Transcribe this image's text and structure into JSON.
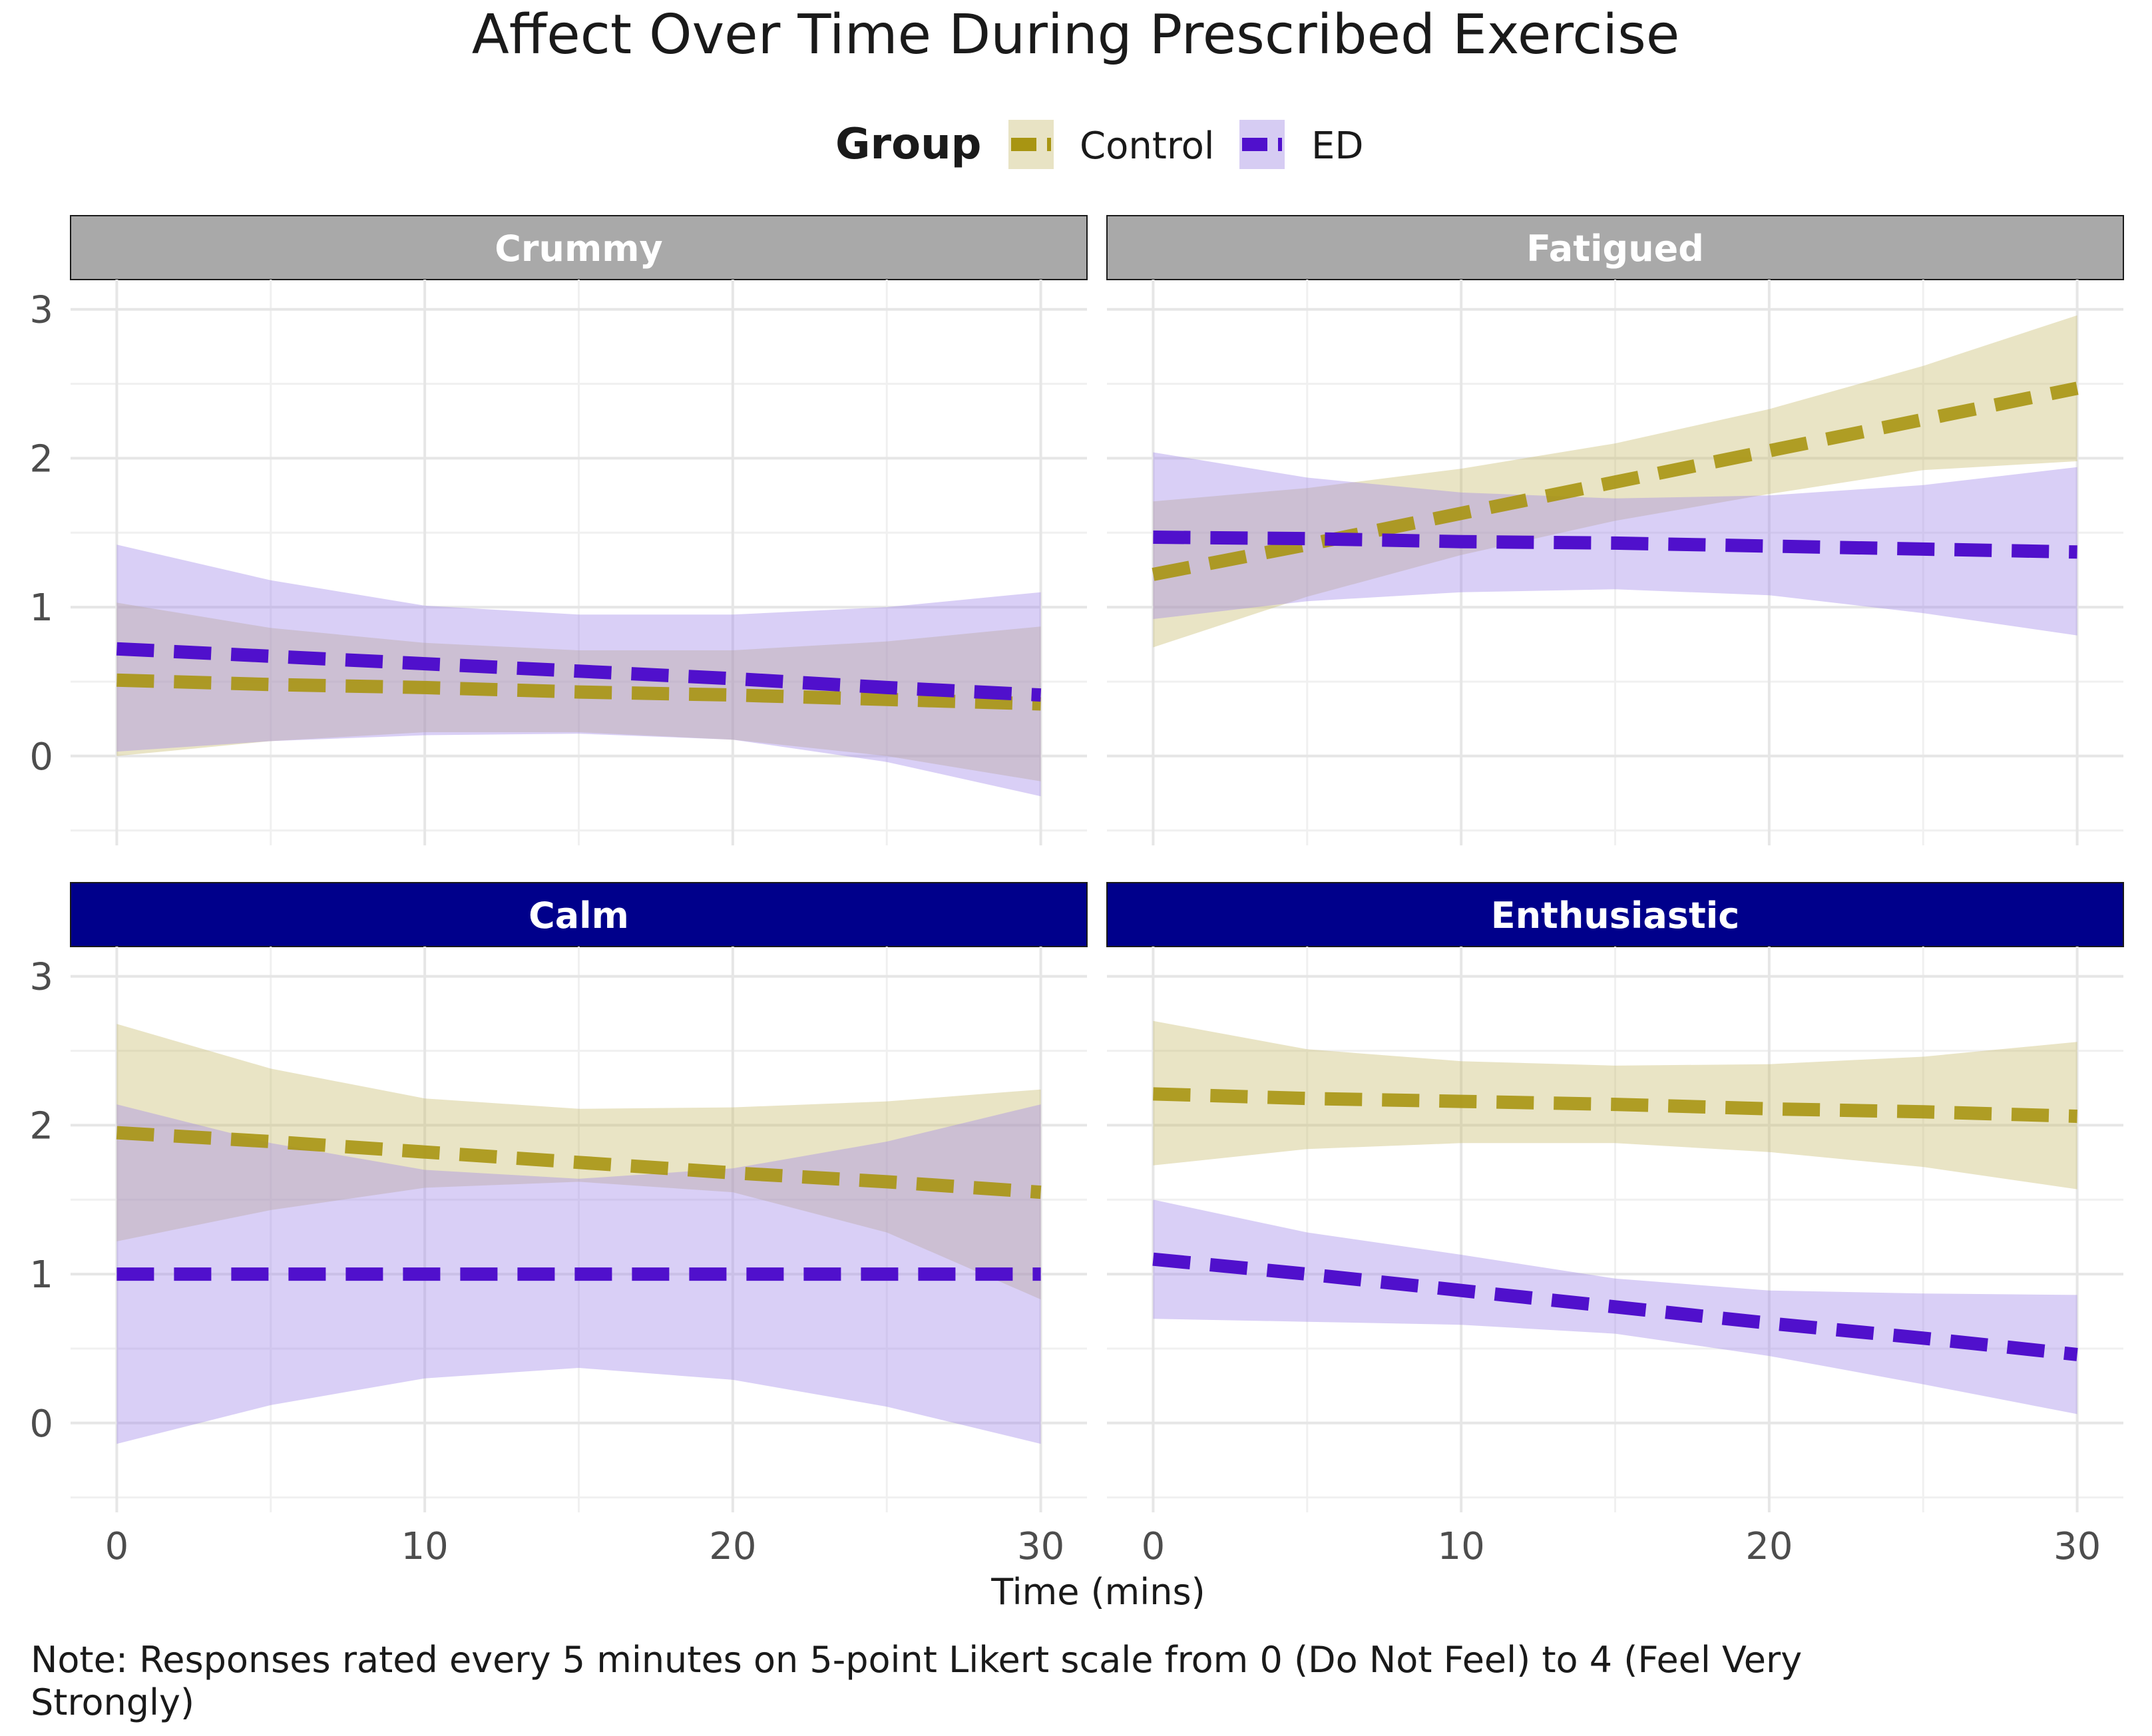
{
  "chart_data": {
    "type": "line",
    "title": "Affect Over Time During Prescribed Exercise",
    "xlabel": "Time (mins)",
    "ylabel": "",
    "xlim": [
      -1.5,
      31.5
    ],
    "ylim": [
      -0.6,
      3.2
    ],
    "x_ticks": [
      0,
      10,
      20,
      30
    ],
    "y_ticks": [
      0,
      1,
      2,
      3
    ],
    "grid": true,
    "legend": {
      "title": "Group",
      "position": "top",
      "entries": [
        {
          "label": "Control",
          "color": "#A89512",
          "fill": "#E8E3C4"
        },
        {
          "label": "ED",
          "color": "#5010CC",
          "fill": "#D6CCF3"
        }
      ]
    },
    "note": "Note: Responses rated every 5 minutes on 5-point Likert scale from 0 (Do Not Feel) to 4 (Feel Very Strongly)",
    "panels": [
      {
        "name": "Crummy",
        "strip_color": "#A9A9A9",
        "series": [
          {
            "name": "Control",
            "x": [
              0,
              5,
              10,
              15,
              20,
              25,
              30
            ],
            "y": [
              0.51,
              0.48,
              0.46,
              0.43,
              0.41,
              0.38,
              0.35
            ],
            "lower": [
              0.0,
              0.1,
              0.16,
              0.16,
              0.11,
              0.0,
              -0.17
            ],
            "upper": [
              1.03,
              0.86,
              0.76,
              0.71,
              0.71,
              0.77,
              0.87
            ]
          },
          {
            "name": "ED",
            "x": [
              0,
              5,
              10,
              15,
              20,
              25,
              30
            ],
            "y": [
              0.72,
              0.67,
              0.62,
              0.57,
              0.52,
              0.46,
              0.41
            ],
            "lower": [
              0.03,
              0.1,
              0.14,
              0.15,
              0.11,
              -0.04,
              -0.27
            ],
            "upper": [
              1.42,
              1.18,
              1.01,
              0.95,
              0.95,
              1.0,
              1.1
            ]
          }
        ]
      },
      {
        "name": "Fatigued",
        "strip_color": "#A9A9A9",
        "series": [
          {
            "name": "Control",
            "x": [
              0,
              5,
              10,
              15,
              20,
              25,
              30
            ],
            "y": [
              1.22,
              1.42,
              1.63,
              1.84,
              2.05,
              2.26,
              2.47
            ],
            "lower": [
              0.73,
              1.07,
              1.35,
              1.58,
              1.76,
              1.92,
              1.98
            ],
            "upper": [
              1.71,
              1.8,
              1.93,
              2.1,
              2.33,
              2.62,
              2.96
            ]
          },
          {
            "name": "ED",
            "x": [
              0,
              5,
              10,
              15,
              20,
              25,
              30
            ],
            "y": [
              1.47,
              1.46,
              1.44,
              1.43,
              1.41,
              1.39,
              1.37
            ],
            "lower": [
              0.92,
              1.04,
              1.1,
              1.12,
              1.08,
              0.96,
              0.81
            ],
            "upper": [
              2.04,
              1.87,
              1.77,
              1.73,
              1.75,
              1.82,
              1.94
            ]
          }
        ]
      },
      {
        "name": "Calm",
        "strip_color": "#00008B",
        "series": [
          {
            "name": "Control",
            "x": [
              0,
              5,
              10,
              15,
              20,
              25,
              30
            ],
            "y": [
              1.95,
              1.89,
              1.82,
              1.75,
              1.68,
              1.62,
              1.55
            ],
            "lower": [
              1.22,
              1.43,
              1.58,
              1.62,
              1.55,
              1.28,
              0.83
            ],
            "upper": [
              2.68,
              2.38,
              2.18,
              2.11,
              2.12,
              2.16,
              2.24
            ]
          },
          {
            "name": "ED",
            "x": [
              0,
              5,
              10,
              15,
              20,
              25,
              30
            ],
            "y": [
              1.0,
              1.0,
              1.0,
              1.0,
              1.0,
              1.0,
              1.0
            ],
            "lower": [
              -0.14,
              0.12,
              0.3,
              0.37,
              0.29,
              0.11,
              -0.14
            ],
            "upper": [
              2.14,
              1.88,
              1.7,
              1.64,
              1.71,
              1.89,
              2.14
            ]
          }
        ]
      },
      {
        "name": "Enthusiastic",
        "strip_color": "#00008B",
        "series": [
          {
            "name": "Control",
            "x": [
              0,
              5,
              10,
              15,
              20,
              25,
              30
            ],
            "y": [
              2.21,
              2.18,
              2.16,
              2.14,
              2.11,
              2.09,
              2.06
            ],
            "lower": [
              1.73,
              1.84,
              1.88,
              1.88,
              1.82,
              1.72,
              1.57
            ],
            "upper": [
              2.7,
              2.51,
              2.43,
              2.4,
              2.41,
              2.46,
              2.56
            ]
          },
          {
            "name": "ED",
            "x": [
              0,
              5,
              10,
              15,
              20,
              25,
              30
            ],
            "y": [
              1.1,
              1.0,
              0.89,
              0.78,
              0.67,
              0.57,
              0.46
            ],
            "lower": [
              0.7,
              0.68,
              0.66,
              0.6,
              0.45,
              0.26,
              0.06
            ],
            "upper": [
              1.5,
              1.28,
              1.13,
              0.97,
              0.89,
              0.87,
              0.86
            ]
          }
        ]
      }
    ]
  }
}
